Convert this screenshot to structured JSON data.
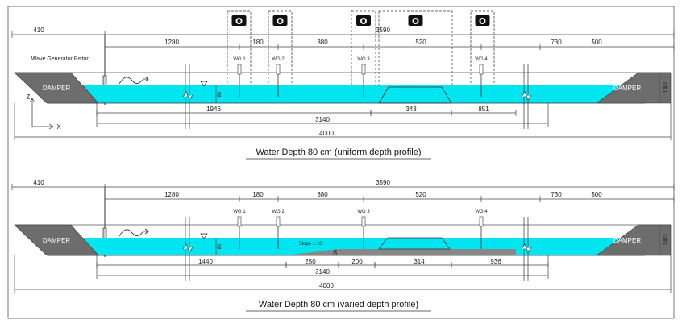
{
  "panels": [
    {
      "top_dims": [
        "410",
        "3590"
      ],
      "section_dims": [
        "1280",
        "180",
        "380",
        "520",
        "730",
        "500"
      ],
      "piston_label": "Wave Generator Piston",
      "gauges": [
        "WG 1",
        "WG 2",
        "WG 3",
        "WG 4"
      ],
      "dampers": [
        "DAMPER",
        "DAMPER"
      ],
      "tank_height": "140",
      "water_depth": "80",
      "axes": [
        "Z",
        "X"
      ],
      "bottom_dims": [
        "1946",
        "343",
        "851"
      ],
      "length_dims": [
        "3140",
        "4000"
      ],
      "caption": "Water Depth 80 cm (uniform depth profile)"
    },
    {
      "top_dims": [
        "410",
        "3590"
      ],
      "section_dims": [
        "1280",
        "180",
        "380",
        "520",
        "730",
        "500"
      ],
      "gauges": [
        "WG 1",
        "WG 2",
        "WG 3",
        "WG 4"
      ],
      "dampers": [
        "DAMPER",
        "DAMPER"
      ],
      "tank_height": "140",
      "water_depth": "80",
      "slope_label": "Slope 1:10",
      "step_height": "30",
      "bottom_dims": [
        "1440",
        "250",
        "200",
        "314",
        "936"
      ],
      "length_dims": [
        "3140",
        "4000"
      ],
      "caption": "Water Depth 80 cm (varied depth profile)"
    }
  ]
}
